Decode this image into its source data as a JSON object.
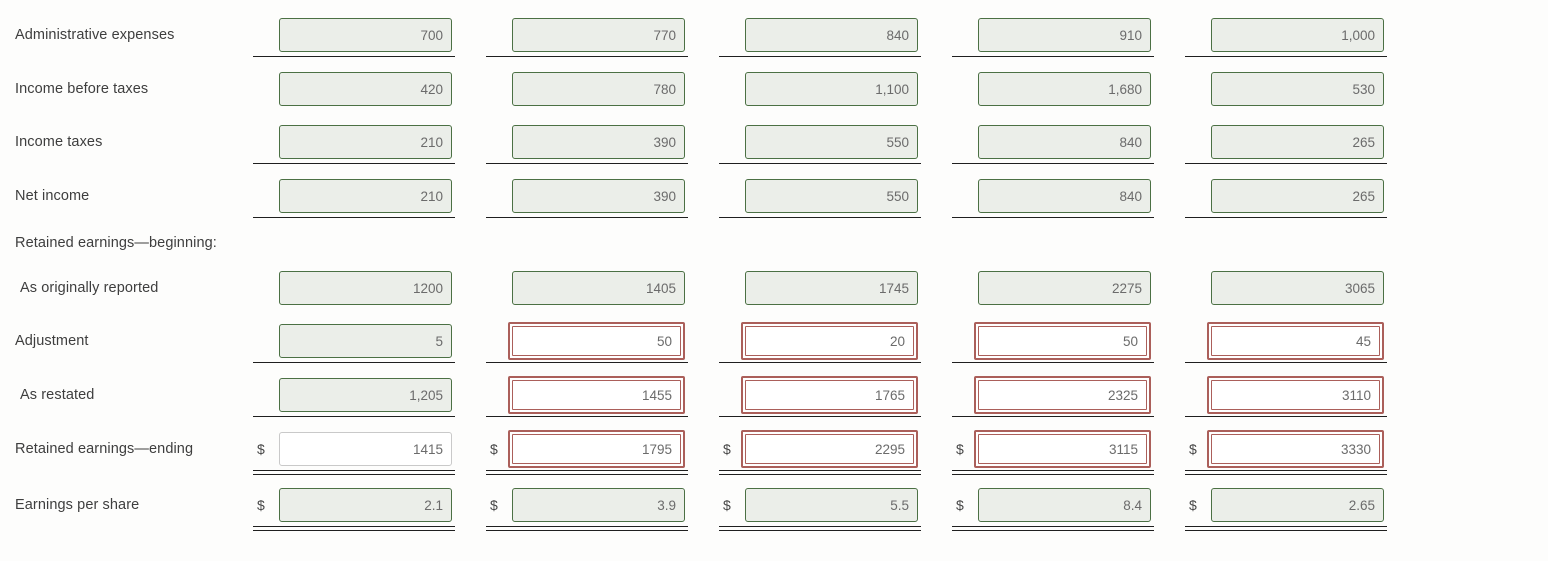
{
  "currency_symbol": "$",
  "colors": {
    "correct_border": "#4b7044",
    "correct_fill": "#ebeee9",
    "incorrect_border": "#ab5f5a",
    "neutral_border": "#c9c9c9",
    "underline": "#1f1f1f",
    "label_text": "#3e3e3e",
    "value_text": "#6b6b6b"
  },
  "rows": [
    {
      "label": "Administrative expenses",
      "type": "data",
      "indent": false,
      "dollar": false,
      "underline": "single",
      "cells": [
        {
          "value": "700",
          "state": "correct"
        },
        {
          "value": "770",
          "state": "correct"
        },
        {
          "value": "840",
          "state": "correct"
        },
        {
          "value": "910",
          "state": "correct"
        },
        {
          "value": "1,000",
          "state": "correct"
        }
      ]
    },
    {
      "label": "Income before taxes",
      "type": "data",
      "indent": false,
      "dollar": false,
      "underline": "none",
      "cells": [
        {
          "value": "420",
          "state": "correct"
        },
        {
          "value": "780",
          "state": "correct"
        },
        {
          "value": "1,100",
          "state": "correct"
        },
        {
          "value": "1,680",
          "state": "correct"
        },
        {
          "value": "530",
          "state": "correct"
        }
      ]
    },
    {
      "label": "Income taxes",
      "type": "data",
      "indent": false,
      "dollar": false,
      "underline": "single",
      "cells": [
        {
          "value": "210",
          "state": "correct"
        },
        {
          "value": "390",
          "state": "correct"
        },
        {
          "value": "550",
          "state": "correct"
        },
        {
          "value": "840",
          "state": "correct"
        },
        {
          "value": "265",
          "state": "correct"
        }
      ]
    },
    {
      "label": "Net income",
      "type": "data",
      "indent": false,
      "dollar": false,
      "underline": "single",
      "cells": [
        {
          "value": "210",
          "state": "correct"
        },
        {
          "value": "390",
          "state": "correct"
        },
        {
          "value": "550",
          "state": "correct"
        },
        {
          "value": "840",
          "state": "correct"
        },
        {
          "value": "265",
          "state": "correct"
        }
      ]
    },
    {
      "label": "Retained earnings—beginning:",
      "type": "section",
      "indent": false,
      "dollar": false,
      "underline": "none",
      "cells": []
    },
    {
      "label": "As originally reported",
      "type": "data",
      "indent": true,
      "dollar": false,
      "underline": "none",
      "cells": [
        {
          "value": "1200",
          "state": "correct"
        },
        {
          "value": "1405",
          "state": "correct"
        },
        {
          "value": "1745",
          "state": "correct"
        },
        {
          "value": "2275",
          "state": "correct"
        },
        {
          "value": "3065",
          "state": "correct"
        }
      ]
    },
    {
      "label": "Adjustment",
      "type": "data",
      "indent": false,
      "dollar": false,
      "underline": "single",
      "cells": [
        {
          "value": "5",
          "state": "correct"
        },
        {
          "value": "50",
          "state": "incorrect"
        },
        {
          "value": "20",
          "state": "incorrect"
        },
        {
          "value": "50",
          "state": "incorrect"
        },
        {
          "value": "45",
          "state": "incorrect"
        }
      ]
    },
    {
      "label": "As restated",
      "type": "data",
      "indent": true,
      "dollar": false,
      "underline": "single",
      "cells": [
        {
          "value": "1,205",
          "state": "correct"
        },
        {
          "value": "1455",
          "state": "incorrect"
        },
        {
          "value": "1765",
          "state": "incorrect"
        },
        {
          "value": "2325",
          "state": "incorrect"
        },
        {
          "value": "3110",
          "state": "incorrect"
        }
      ]
    },
    {
      "label": "Retained earnings—ending",
      "type": "data",
      "indent": false,
      "dollar": true,
      "underline": "double",
      "cells": [
        {
          "value": "1415",
          "state": "neutral"
        },
        {
          "value": "1795",
          "state": "incorrect"
        },
        {
          "value": "2295",
          "state": "incorrect"
        },
        {
          "value": "3115",
          "state": "incorrect"
        },
        {
          "value": "3330",
          "state": "incorrect"
        }
      ]
    },
    {
      "label": "Earnings per share",
      "type": "data",
      "indent": false,
      "dollar": true,
      "underline": "double",
      "cells": [
        {
          "value": "2.1",
          "state": "correct"
        },
        {
          "value": "3.9",
          "state": "correct"
        },
        {
          "value": "5.5",
          "state": "correct"
        },
        {
          "value": "8.4",
          "state": "correct"
        },
        {
          "value": "2.65",
          "state": "correct"
        }
      ]
    }
  ]
}
